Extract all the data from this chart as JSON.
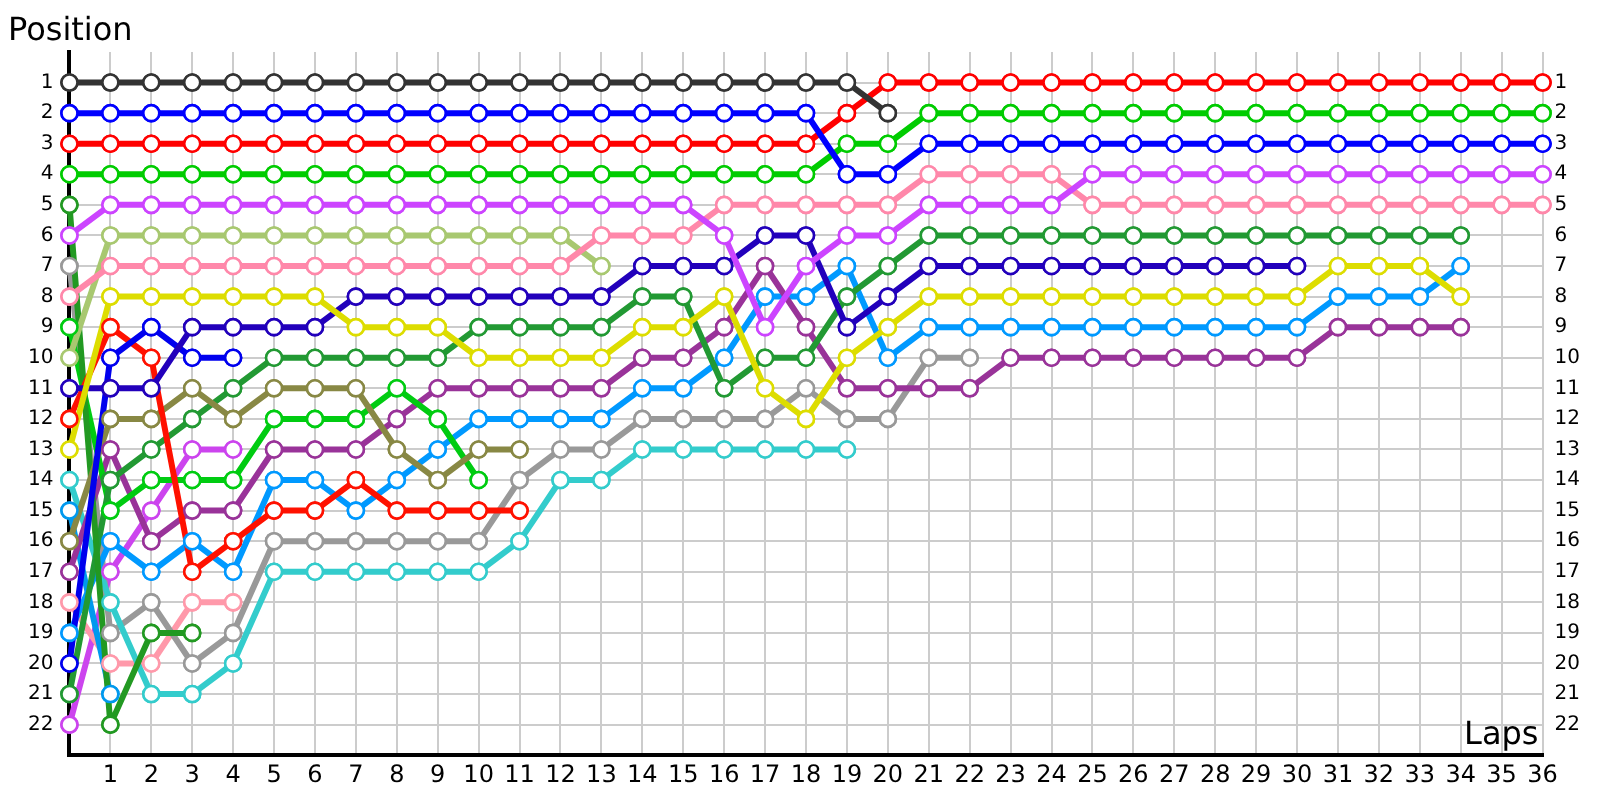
{
  "chart_data": {
    "type": "line",
    "ylabel": "Position",
    "xlabel": "Laps",
    "x": [
      0,
      1,
      2,
      3,
      4,
      5,
      6,
      7,
      8,
      9,
      10,
      11,
      12,
      13,
      14,
      15,
      16,
      17,
      18,
      19,
      20,
      21,
      22,
      23,
      24,
      25,
      26,
      27,
      28,
      29,
      30,
      31,
      32,
      33,
      34,
      35,
      36
    ],
    "xlim": [
      0,
      36
    ],
    "xticks": [
      1,
      2,
      3,
      4,
      5,
      6,
      7,
      8,
      9,
      10,
      11,
      12,
      13,
      14,
      15,
      16,
      17,
      18,
      19,
      20,
      21,
      22,
      23,
      24,
      25,
      26,
      27,
      28,
      29,
      30,
      31,
      32,
      33,
      34,
      35,
      36
    ],
    "ylim": [
      23,
      0
    ],
    "yticks": [
      1,
      2,
      3,
      4,
      5,
      6,
      7,
      8,
      9,
      10,
      11,
      12,
      13,
      14,
      15,
      16,
      17,
      18,
      19,
      20,
      21,
      22
    ],
    "y2lim": [
      23,
      0
    ],
    "y2ticks": [
      1,
      2,
      3,
      4,
      5,
      6,
      7,
      8,
      9,
      10,
      11,
      12,
      13,
      14,
      15,
      16,
      17,
      18,
      19,
      20,
      21,
      22
    ],
    "grid": true,
    "marker": "circle",
    "line_style": "solid",
    "series": [
      {
        "color": "#333333",
        "values": [
          1,
          1,
          1,
          1,
          1,
          1,
          1,
          1,
          1,
          1,
          1,
          1,
          1,
          1,
          1,
          1,
          1,
          1,
          1,
          1,
          2,
          null,
          null,
          null,
          null,
          null,
          null,
          null,
          null,
          null,
          null,
          null,
          null,
          null,
          null,
          null,
          null
        ]
      },
      {
        "color": "#0000ff",
        "values": [
          2,
          2,
          2,
          2,
          2,
          2,
          2,
          2,
          2,
          2,
          2,
          2,
          2,
          2,
          2,
          2,
          2,
          2,
          2,
          4,
          4,
          3,
          3,
          3,
          3,
          3,
          3,
          3,
          3,
          3,
          3,
          3,
          3,
          3,
          3,
          3,
          3
        ]
      },
      {
        "color": "#ff0000",
        "values": [
          3,
          3,
          3,
          3,
          3,
          3,
          3,
          3,
          3,
          3,
          3,
          3,
          3,
          3,
          3,
          3,
          3,
          3,
          3,
          2,
          1,
          1,
          1,
          1,
          1,
          1,
          1,
          1,
          1,
          1,
          1,
          1,
          1,
          1,
          1,
          1,
          1
        ]
      },
      {
        "color": "#00cc00",
        "values": [
          4,
          4,
          4,
          4,
          4,
          4,
          4,
          4,
          4,
          4,
          4,
          4,
          4,
          4,
          4,
          4,
          4,
          4,
          4,
          3,
          3,
          2,
          2,
          2,
          2,
          2,
          2,
          2,
          2,
          2,
          2,
          2,
          2,
          2,
          2,
          2,
          2
        ]
      },
      {
        "color": "#cc44ff",
        "values": [
          6,
          5,
          5,
          5,
          5,
          5,
          5,
          5,
          5,
          5,
          5,
          5,
          5,
          5,
          5,
          5,
          6,
          9,
          7,
          6,
          6,
          5,
          5,
          5,
          5,
          4,
          4,
          4,
          4,
          4,
          4,
          4,
          4,
          4,
          4,
          4,
          4
        ]
      },
      {
        "color": "#ff88aa",
        "values": [
          8,
          7,
          7,
          7,
          7,
          7,
          7,
          7,
          7,
          7,
          7,
          7,
          7,
          6,
          6,
          6,
          5,
          5,
          5,
          5,
          5,
          4,
          4,
          4,
          4,
          5,
          5,
          5,
          5,
          5,
          5,
          5,
          5,
          5,
          5,
          5,
          5
        ]
      },
      {
        "color": "#a8c870",
        "values": [
          10,
          6,
          6,
          6,
          6,
          6,
          6,
          6,
          6,
          6,
          6,
          6,
          6,
          7,
          null,
          null,
          null,
          null,
          null,
          null,
          null,
          null,
          null,
          null,
          null,
          null,
          null,
          null,
          null,
          null,
          null,
          null,
          null,
          null,
          null,
          null,
          null
        ]
      },
      {
        "color": "#dddd00",
        "values": [
          13,
          8,
          8,
          8,
          8,
          8,
          8,
          9,
          9,
          9,
          10,
          10,
          10,
          10,
          9,
          9,
          8,
          11,
          12,
          10,
          9,
          8,
          8,
          8,
          8,
          8,
          8,
          8,
          8,
          8,
          8,
          7,
          7,
          7,
          8,
          null,
          null
        ]
      },
      {
        "color": "#2200bb",
        "values": [
          11,
          11,
          11,
          9,
          9,
          9,
          9,
          8,
          8,
          8,
          8,
          8,
          8,
          8,
          7,
          7,
          7,
          6,
          6,
          9,
          8,
          7,
          7,
          7,
          7,
          7,
          7,
          7,
          7,
          7,
          7,
          null,
          null,
          null,
          null,
          null,
          null
        ]
      },
      {
        "color": "#0000ee",
        "values": [
          20,
          10,
          9,
          10,
          10,
          null,
          null,
          null,
          null,
          null,
          null,
          null,
          null,
          null,
          null,
          null,
          null,
          null,
          null,
          null,
          null,
          null,
          null,
          null,
          null,
          null,
          null,
          null,
          null,
          null,
          null,
          null,
          null,
          null,
          null,
          null,
          null
        ]
      },
      {
        "color": "#ff1100",
        "values": [
          12,
          9,
          10,
          17,
          16,
          15,
          15,
          14,
          15,
          15,
          15,
          15,
          null,
          null,
          null,
          null,
          null,
          null,
          null,
          null,
          null,
          null,
          null,
          null,
          null,
          null,
          null,
          null,
          null,
          null,
          null,
          null,
          null,
          null,
          null,
          null,
          null
        ]
      },
      {
        "color": "#888844",
        "values": [
          16,
          12,
          12,
          11,
          12,
          11,
          11,
          11,
          13,
          14,
          13,
          13,
          null,
          null,
          null,
          null,
          null,
          null,
          null,
          null,
          null,
          null,
          null,
          null,
          null,
          null,
          null,
          null,
          null,
          null,
          null,
          null,
          null,
          null,
          null,
          null,
          null
        ]
      },
      {
        "color": "#229922",
        "values": [
          5,
          22,
          19,
          19,
          null,
          null,
          null,
          null,
          null,
          null,
          null,
          null,
          null,
          null,
          null,
          null,
          null,
          null,
          null,
          null,
          null,
          null,
          null,
          null,
          null,
          null,
          null,
          null,
          null,
          null,
          null,
          null,
          null,
          null,
          null,
          null,
          null
        ]
      },
      {
        "color": "#229933",
        "values": [
          21,
          14,
          13,
          12,
          11,
          10,
          10,
          10,
          10,
          10,
          9,
          9,
          9,
          9,
          8,
          8,
          11,
          10,
          10,
          8,
          7,
          6,
          6,
          6,
          6,
          6,
          6,
          6,
          6,
          6,
          6,
          6,
          6,
          6,
          6,
          null,
          null
        ]
      },
      {
        "color": "#00cc11",
        "values": [
          9,
          15,
          14,
          14,
          14,
          12,
          12,
          12,
          11,
          12,
          14,
          null,
          null,
          null,
          null,
          null,
          null,
          null,
          null,
          null,
          null,
          null,
          null,
          null,
          null,
          null,
          null,
          null,
          null,
          null,
          null,
          null,
          null,
          null,
          null,
          null,
          null
        ]
      },
      {
        "color": "#993399",
        "values": [
          17,
          13,
          16,
          15,
          15,
          13,
          13,
          13,
          12,
          11,
          11,
          11,
          11,
          11,
          10,
          10,
          9,
          7,
          9,
          11,
          11,
          11,
          11,
          10,
          10,
          10,
          10,
          10,
          10,
          10,
          10,
          9,
          9,
          9,
          9,
          null,
          null
        ]
      },
      {
        "color": "#0099ff",
        "values": [
          19,
          16,
          17,
          16,
          17,
          14,
          14,
          15,
          14,
          13,
          12,
          12,
          12,
          12,
          11,
          11,
          10,
          8,
          8,
          7,
          10,
          9,
          9,
          9,
          9,
          9,
          9,
          9,
          9,
          9,
          9,
          8,
          8,
          8,
          7,
          null,
          null
        ]
      },
      {
        "color": "#0099ee",
        "values": [
          15,
          21,
          null,
          null,
          null,
          null,
          null,
          null,
          null,
          null,
          null,
          null,
          null,
          null,
          null,
          null,
          null,
          null,
          null,
          null,
          null,
          null,
          null,
          null,
          null,
          null,
          null,
          null,
          null,
          null,
          null,
          null,
          null,
          null,
          null,
          null,
          null
        ]
      },
      {
        "color": "#33cccc",
        "values": [
          14,
          18,
          21,
          21,
          20,
          17,
          17,
          17,
          17,
          17,
          17,
          16,
          14,
          14,
          13,
          13,
          13,
          13,
          13,
          13,
          null,
          null,
          null,
          null,
          null,
          null,
          null,
          null,
          null,
          null,
          null,
          null,
          null,
          null,
          null,
          null,
          null
        ]
      },
      {
        "color": "#999999",
        "values": [
          7,
          19,
          18,
          20,
          19,
          16,
          16,
          16,
          16,
          16,
          16,
          14,
          13,
          13,
          12,
          12,
          12,
          12,
          11,
          12,
          12,
          10,
          10,
          null,
          null,
          null,
          null,
          null,
          null,
          null,
          null,
          null,
          null,
          null,
          null,
          null,
          null
        ]
      },
      {
        "color": "#ff99aa",
        "values": [
          18,
          20,
          20,
          18,
          18,
          null,
          null,
          null,
          null,
          null,
          null,
          null,
          null,
          null,
          null,
          null,
          null,
          null,
          null,
          null,
          null,
          null,
          null,
          null,
          null,
          null,
          null,
          null,
          null,
          null,
          null,
          null,
          null,
          null,
          null,
          null,
          null
        ]
      },
      {
        "color": "#cc44ee",
        "values": [
          22,
          17,
          15,
          13,
          13,
          null,
          null,
          null,
          null,
          null,
          null,
          null,
          null,
          null,
          null,
          null,
          null,
          null,
          null,
          null,
          null,
          null,
          null,
          null,
          null,
          null,
          null,
          null,
          null,
          null,
          null,
          null,
          null,
          null,
          null,
          null,
          null
        ]
      }
    ]
  }
}
